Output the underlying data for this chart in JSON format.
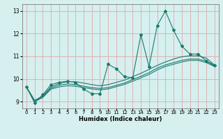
{
  "xlabel": "Humidex (Indice chaleur)",
  "xlim": [
    -0.5,
    23.5
  ],
  "ylim": [
    8.7,
    13.3
  ],
  "xticks": [
    0,
    1,
    2,
    3,
    4,
    5,
    6,
    7,
    8,
    9,
    10,
    11,
    12,
    13,
    14,
    15,
    16,
    17,
    18,
    19,
    20,
    21,
    22,
    23
  ],
  "yticks": [
    9,
    10,
    11,
    12,
    13
  ],
  "bg_color": "#d6efef",
  "grid_color": "#e0aaaa",
  "line_color": "#1a7a6e",
  "jagged_x": [
    0,
    1,
    2,
    3,
    4,
    5,
    6,
    7,
    8,
    9,
    10,
    11,
    12,
    13,
    14,
    15,
    16,
    17,
    18,
    19,
    20,
    21,
    22,
    23
  ],
  "jagged_y": [
    9.65,
    8.95,
    9.3,
    9.75,
    9.85,
    9.9,
    9.85,
    9.55,
    9.35,
    9.35,
    10.65,
    10.45,
    10.1,
    10.05,
    11.95,
    10.55,
    12.35,
    13.0,
    12.15,
    11.45,
    11.1,
    11.1,
    10.8,
    10.6
  ],
  "smooth1_x": [
    0,
    1,
    2,
    3,
    4,
    5,
    6,
    7,
    8,
    9,
    10,
    11,
    12,
    13,
    14,
    15,
    16,
    17,
    18,
    19,
    20,
    21,
    22,
    23
  ],
  "smooth1_y": [
    9.65,
    9.05,
    9.25,
    9.65,
    9.8,
    9.88,
    9.88,
    9.82,
    9.75,
    9.7,
    9.75,
    9.85,
    9.95,
    10.1,
    10.25,
    10.42,
    10.6,
    10.75,
    10.88,
    10.98,
    11.02,
    11.02,
    10.92,
    10.62
  ],
  "smooth2_x": [
    0,
    1,
    2,
    3,
    4,
    5,
    6,
    7,
    8,
    9,
    10,
    11,
    12,
    13,
    14,
    15,
    16,
    17,
    18,
    19,
    20,
    21,
    22,
    23
  ],
  "smooth2_y": [
    9.65,
    9.05,
    9.22,
    9.6,
    9.72,
    9.78,
    9.75,
    9.68,
    9.62,
    9.58,
    9.62,
    9.72,
    9.82,
    9.97,
    10.12,
    10.28,
    10.48,
    10.62,
    10.72,
    10.82,
    10.88,
    10.88,
    10.78,
    10.58
  ],
  "smooth3_x": [
    0,
    1,
    2,
    3,
    4,
    5,
    6,
    7,
    8,
    9,
    10,
    11,
    12,
    13,
    14,
    15,
    16,
    17,
    18,
    19,
    20,
    21,
    22,
    23
  ],
  "smooth3_y": [
    9.65,
    9.0,
    9.18,
    9.55,
    9.65,
    9.7,
    9.68,
    9.62,
    9.56,
    9.52,
    9.56,
    9.66,
    9.76,
    9.9,
    10.05,
    10.2,
    10.4,
    10.55,
    10.65,
    10.75,
    10.82,
    10.82,
    10.72,
    10.55
  ]
}
